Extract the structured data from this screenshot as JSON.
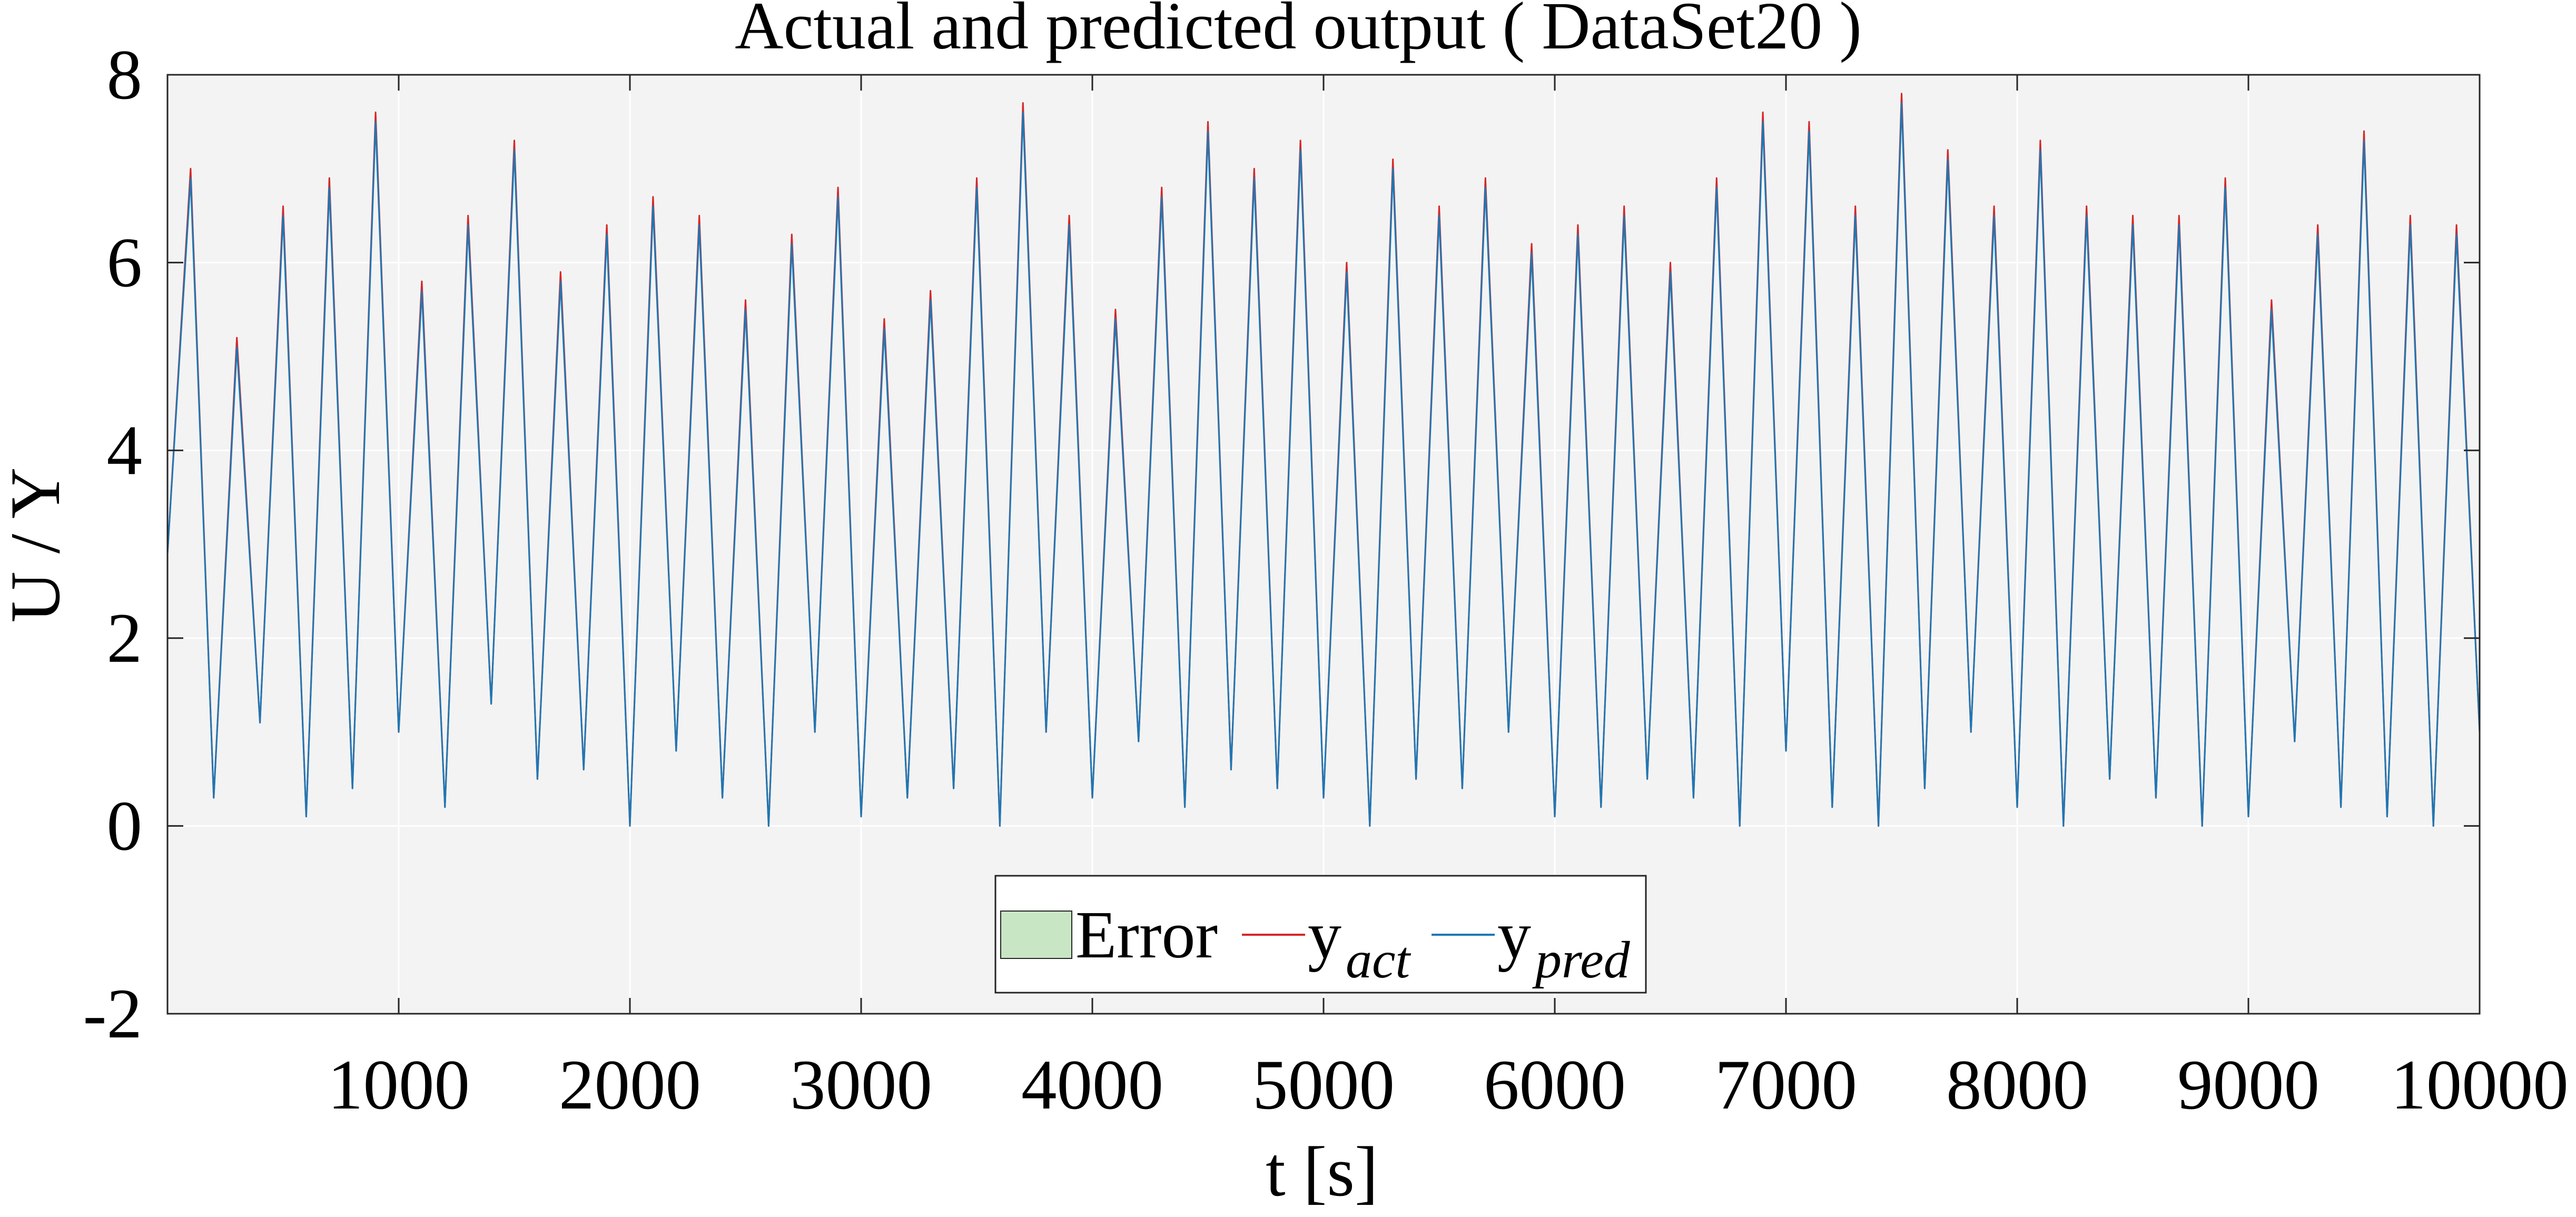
{
  "chart_data": {
    "type": "line",
    "title": "Actual and predicted output ( DataSet20  )",
    "xlabel": "t [s]",
    "ylabel": "U / Y",
    "xlim": [
      0,
      10000
    ],
    "ylim": [
      -2,
      8
    ],
    "x_ticks": [
      1000,
      2000,
      3000,
      4000,
      5000,
      6000,
      7000,
      8000,
      9000,
      10000
    ],
    "x_tick_labels": [
      "1000",
      "2000",
      "3000",
      "4000",
      "5000",
      "6000",
      "7000",
      "8000",
      "9000",
      "10000"
    ],
    "y_ticks": [
      -2,
      0,
      2,
      4,
      6,
      8
    ],
    "y_tick_labels": [
      "-2",
      "0",
      "2",
      "4",
      "6",
      "8"
    ],
    "grid": true,
    "background": "#f3f3f3",
    "legend": {
      "placement": "bottom-center",
      "entries": [
        {
          "key": "error",
          "label": "Error",
          "subscript": "",
          "color": "#c8e6c4",
          "marker": "patch"
        },
        {
          "key": "act",
          "label": "y",
          "subscript": "act",
          "color": "#d62728",
          "marker": "line"
        },
        {
          "key": "pred",
          "label": "y",
          "subscript": "pred",
          "color": "#1f77b4",
          "marker": "line"
        }
      ]
    },
    "series": [
      {
        "name": "y_act",
        "color": "#d62728",
        "x": [
          0,
          100,
          200,
          300,
          400,
          500,
          600,
          700,
          800,
          900,
          1000,
          1100,
          1200,
          1300,
          1400,
          1500,
          1600,
          1700,
          1800,
          1900,
          2000,
          2100,
          2200,
          2300,
          2400,
          2500,
          2600,
          2700,
          2800,
          2900,
          3000,
          3100,
          3200,
          3300,
          3400,
          3500,
          3600,
          3700,
          3800,
          3900,
          4000,
          4100,
          4200,
          4300,
          4400,
          4500,
          4600,
          4700,
          4800,
          4900,
          5000,
          5100,
          5200,
          5300,
          5400,
          5500,
          5600,
          5700,
          5800,
          5900,
          6000,
          6100,
          6200,
          6300,
          6400,
          6500,
          6600,
          6700,
          6800,
          6900,
          7000,
          7100,
          7200,
          7300,
          7400,
          7500,
          7600,
          7700,
          7800,
          7900,
          8000,
          8100,
          8200,
          8300,
          8400,
          8500,
          8600,
          8700,
          8800,
          8900,
          9000,
          9100,
          9200,
          9300,
          9400,
          9500,
          9600,
          9700,
          9800,
          9900,
          10000
        ],
        "y": [
          2.9,
          7.0,
          0.3,
          5.2,
          1.1,
          6.6,
          0.1,
          6.9,
          0.4,
          7.6,
          1.0,
          5.8,
          0.2,
          6.5,
          1.3,
          7.3,
          0.5,
          5.9,
          0.6,
          6.4,
          0.0,
          6.7,
          0.8,
          6.5,
          0.3,
          5.6,
          0.0,
          6.3,
          1.0,
          6.8,
          0.1,
          5.4,
          0.3,
          5.7,
          0.4,
          6.9,
          0.0,
          7.7,
          1.0,
          6.5,
          0.3,
          5.5,
          0.9,
          6.8,
          0.2,
          7.5,
          0.6,
          7.0,
          0.4,
          7.3,
          0.3,
          6.0,
          0.0,
          7.1,
          0.5,
          6.6,
          0.4,
          6.9,
          1.0,
          6.2,
          0.1,
          6.4,
          0.2,
          6.6,
          0.5,
          6.0,
          0.3,
          6.9,
          0.0,
          7.6,
          0.8,
          7.5,
          0.2,
          6.6,
          0.0,
          7.8,
          0.4,
          7.2,
          1.0,
          6.6,
          0.2,
          7.3,
          0.0,
          6.6,
          0.5,
          6.5,
          0.3,
          6.5,
          0.0,
          6.9,
          0.1,
          5.6,
          0.9,
          6.4,
          0.2,
          7.4,
          0.1,
          6.5,
          0.0,
          6.4,
          1.0
        ]
      },
      {
        "name": "y_pred",
        "color": "#1f77b4",
        "x": [
          0,
          100,
          200,
          300,
          400,
          500,
          600,
          700,
          800,
          900,
          1000,
          1100,
          1200,
          1300,
          1400,
          1500,
          1600,
          1700,
          1800,
          1900,
          2000,
          2100,
          2200,
          2300,
          2400,
          2500,
          2600,
          2700,
          2800,
          2900,
          3000,
          3100,
          3200,
          3300,
          3400,
          3500,
          3600,
          3700,
          3800,
          3900,
          4000,
          4100,
          4200,
          4300,
          4400,
          4500,
          4600,
          4700,
          4800,
          4900,
          5000,
          5100,
          5200,
          5300,
          5400,
          5500,
          5600,
          5700,
          5800,
          5900,
          6000,
          6100,
          6200,
          6300,
          6400,
          6500,
          6600,
          6700,
          6800,
          6900,
          7000,
          7100,
          7200,
          7300,
          7400,
          7500,
          7600,
          7700,
          7800,
          7900,
          8000,
          8100,
          8200,
          8300,
          8400,
          8500,
          8600,
          8700,
          8800,
          8900,
          9000,
          9100,
          9200,
          9300,
          9400,
          9500,
          9600,
          9700,
          9800,
          9900,
          10000
        ],
        "y": [
          2.9,
          6.9,
          0.3,
          5.1,
          1.1,
          6.5,
          0.1,
          6.8,
          0.4,
          7.5,
          1.0,
          5.7,
          0.2,
          6.4,
          1.3,
          7.2,
          0.5,
          5.8,
          0.6,
          6.3,
          0.0,
          6.6,
          0.8,
          6.4,
          0.3,
          5.5,
          0.0,
          6.2,
          1.0,
          6.7,
          0.1,
          5.3,
          0.3,
          5.6,
          0.4,
          6.8,
          0.0,
          7.6,
          1.0,
          6.4,
          0.3,
          5.4,
          0.9,
          6.7,
          0.2,
          7.4,
          0.6,
          6.9,
          0.4,
          7.2,
          0.3,
          5.9,
          0.0,
          7.0,
          0.5,
          6.5,
          0.4,
          6.8,
          1.0,
          6.1,
          0.1,
          6.3,
          0.2,
          6.5,
          0.5,
          5.9,
          0.3,
          6.8,
          0.0,
          7.5,
          0.8,
          7.4,
          0.2,
          6.5,
          0.0,
          7.7,
          0.4,
          7.1,
          1.0,
          6.5,
          0.2,
          7.2,
          0.0,
          6.5,
          0.5,
          6.4,
          0.3,
          6.4,
          0.0,
          6.8,
          0.1,
          5.5,
          0.9,
          6.3,
          0.2,
          7.3,
          0.1,
          6.4,
          0.0,
          6.3,
          1.0
        ]
      }
    ]
  }
}
